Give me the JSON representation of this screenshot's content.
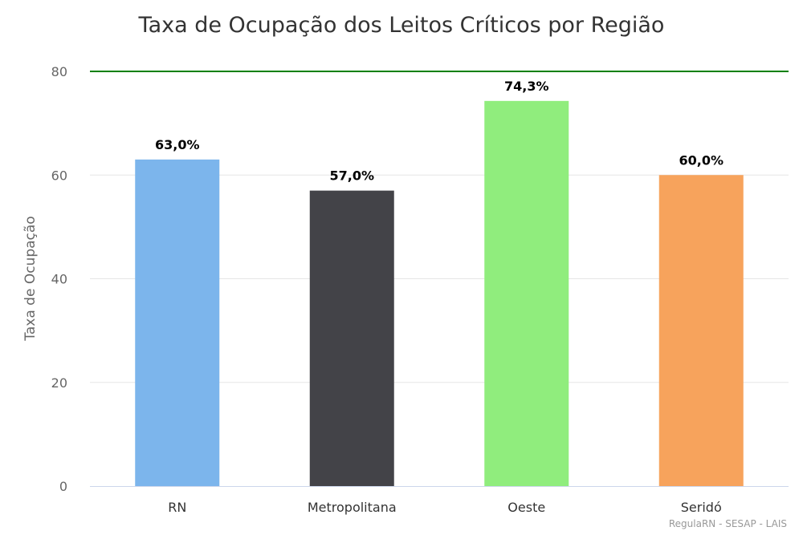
{
  "chart_data": {
    "type": "bar",
    "title": "Taxa de Ocupação dos Leitos Críticos por Região",
    "ylabel": "Taxa de Ocupação",
    "xlabel": "",
    "categories": [
      "RN",
      "Metropolitana",
      "Oeste",
      "Seridó"
    ],
    "values": [
      63.0,
      57.0,
      74.3,
      60.0
    ],
    "data_labels": [
      "63,0%",
      "57,0%",
      "74,3%",
      "60,0%"
    ],
    "colors": [
      "#7cb5ec",
      "#434348",
      "#90ed7d",
      "#f7a35c"
    ],
    "ylim": [
      0,
      80
    ],
    "yticks": [
      "0",
      "20",
      "40",
      "60",
      "80"
    ],
    "grid": true,
    "reference_line": {
      "value": 80,
      "color": "#008000"
    },
    "credits": "RegulaRN - SESAP - LAIS"
  }
}
